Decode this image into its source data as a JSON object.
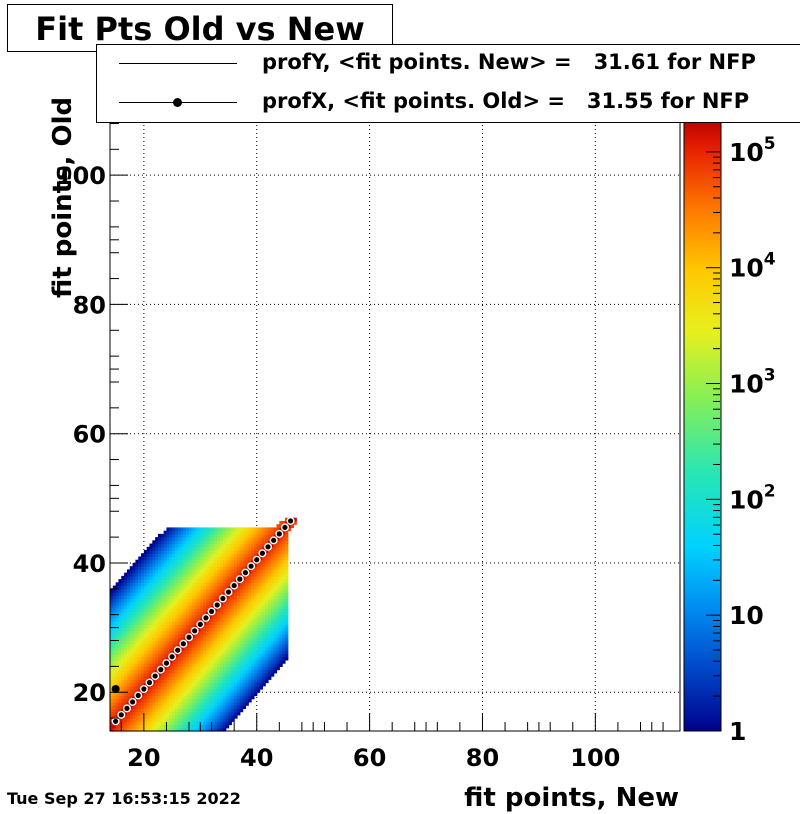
{
  "title": "Fit Pts Old vs New",
  "timestamp": "Tue Sep 27 16:53:15 2022",
  "legend": {
    "entries": [
      {
        "text": "profY, <fit points. New> =   31.61 for NFP"
      },
      {
        "text": "profX, <fit points. Old> =   31.55 for NFP"
      }
    ]
  },
  "chart_data": {
    "type": "heatmap",
    "title": "Fit Pts Old vs New",
    "xlabel": "fit points, New",
    "ylabel": "fit points, Old",
    "xlim": [
      14,
      115
    ],
    "ylim": [
      14,
      109
    ],
    "x_ticks": [
      20,
      40,
      60,
      80,
      100
    ],
    "y_ticks": [
      20,
      40,
      60,
      80,
      100
    ],
    "grid": true,
    "z_scale": "log",
    "z_range": [
      1,
      200000
    ],
    "z_ticks": [
      "1",
      "10",
      "10^2",
      "10^3",
      "10^4",
      "10^5"
    ],
    "populated_region": {
      "x": [
        14,
        47
      ],
      "y": [
        14,
        47
      ]
    },
    "diagonal_profile": {
      "x": [
        15,
        16,
        17,
        18,
        19,
        20,
        21,
        22,
        23,
        24,
        25,
        26,
        27,
        28,
        29,
        30,
        31,
        32,
        33,
        34,
        35,
        36,
        37,
        38,
        39,
        40,
        41,
        42,
        43,
        44,
        45,
        46
      ],
      "y": [
        15.5,
        16.5,
        17.5,
        18.5,
        19.5,
        20.5,
        21.5,
        22.5,
        23.5,
        24.5,
        25.5,
        26.5,
        27.5,
        28.5,
        29.5,
        30.5,
        31.5,
        32.5,
        33.5,
        34.5,
        35.5,
        36.5,
        37.5,
        38.5,
        39.5,
        40.5,
        41.5,
        42.5,
        43.5,
        44.5,
        45.5,
        46.5
      ]
    },
    "outlier_point": {
      "x": 15,
      "y": 20.5
    },
    "series": [
      {
        "name": "profY, <fit points. New>",
        "mean": 31.61
      },
      {
        "name": "profX, <fit points. Old>",
        "mean": 31.55
      }
    ]
  }
}
